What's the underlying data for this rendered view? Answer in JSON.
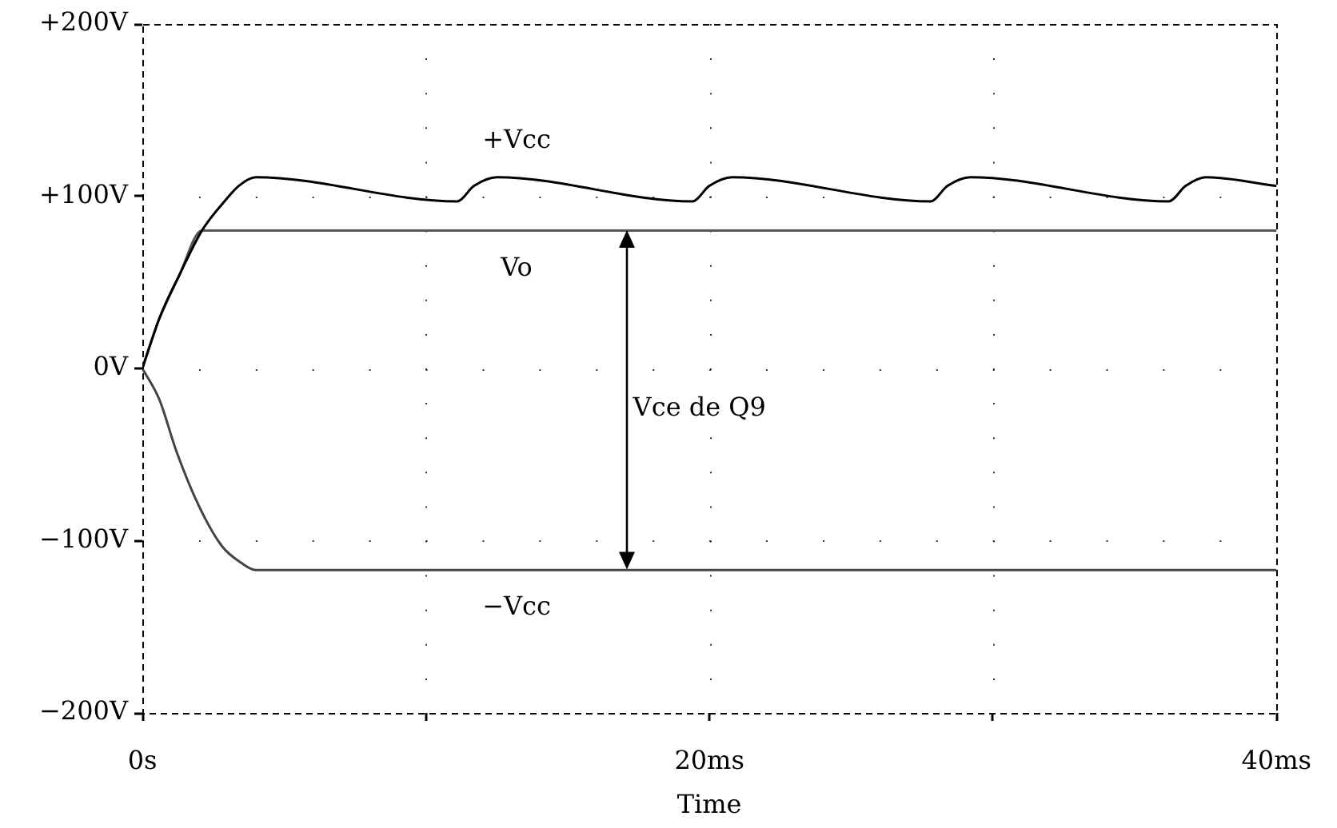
{
  "chart_data": {
    "type": "line",
    "xlabel": "Time",
    "xlim": [
      0,
      40
    ],
    "xticks": [
      {
        "value": 0,
        "label": "0s"
      },
      {
        "value": 10,
        "label": null
      },
      {
        "value": 20,
        "label": "20ms"
      },
      {
        "value": 30,
        "label": null
      },
      {
        "value": 40,
        "label": "40ms"
      }
    ],
    "ylim": [
      -200,
      200
    ],
    "yticks": [
      {
        "value": -200,
        "label": "−200V"
      },
      {
        "value": -100,
        "label": "−100V"
      },
      {
        "value": 0,
        "label": "0V"
      },
      {
        "value": 100,
        "label": "+100V"
      },
      {
        "value": 200,
        "label": "+200V"
      }
    ],
    "grid": true,
    "legend": false,
    "marker": "none",
    "series": [
      {
        "name": "+Vcc",
        "color": "#000000",
        "x": [
          0,
          0.6,
          1.3,
          2.1,
          2.95,
          3.4,
          4.0,
          11.1,
          11.7,
          12.5,
          19.4,
          20.0,
          20.8,
          27.8,
          28.4,
          29.2,
          36.2,
          36.8,
          37.5,
          40
        ],
        "values": [
          0,
          29,
          54,
          80,
          98,
          106,
          111,
          97,
          106,
          111,
          97,
          106,
          111,
          97,
          106,
          111,
          97,
          106,
          111,
          106
        ]
      },
      {
        "name": "Vo",
        "color": "#555555",
        "x": [
          0,
          0.6,
          1.3,
          2.1,
          40
        ],
        "values": [
          0,
          29,
          54,
          80,
          80
        ]
      },
      {
        "name": "−Vcc",
        "color": "#444444",
        "x": [
          0,
          0.6,
          1.2,
          2.0,
          2.8,
          3.5,
          4.0,
          40
        ],
        "values": [
          0,
          -18,
          -48,
          -80,
          -103,
          -113,
          -117,
          -117
        ]
      }
    ],
    "annotations": [
      "Vce de Q9"
    ]
  }
}
